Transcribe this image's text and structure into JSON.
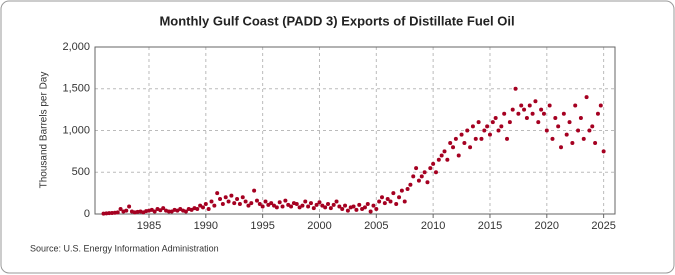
{
  "chart_data": {
    "type": "scatter",
    "title": "Monthly Gulf Coast (PADD 3) Exports of Distillate Fuel Oil",
    "y_label": "Thousand Barrels per Day",
    "source": "Source: U.S. Energy Information Administration",
    "color": "#a50021",
    "grid": true,
    "xlim": [
      1980.25,
      2026
    ],
    "xticks": [
      1985,
      1990,
      1995,
      2000,
      2005,
      2010,
      2015,
      2020,
      2025
    ],
    "ylim": [
      0,
      2000
    ],
    "yticks": [
      0,
      500,
      {
        "value": 1000,
        "label": "1,000"
      },
      {
        "value": 1500,
        "label": "1,500"
      },
      {
        "value": 2000,
        "label": "2,000"
      }
    ],
    "x": [
      1981,
      1981.25,
      1981.5,
      1981.75,
      1982,
      1982.25,
      1982.5,
      1982.75,
      1983,
      1983.25,
      1983.5,
      1983.75,
      1984,
      1984.25,
      1984.5,
      1984.75,
      1985,
      1985.25,
      1985.5,
      1985.75,
      1986,
      1986.25,
      1986.5,
      1986.75,
      1987,
      1987.25,
      1987.5,
      1987.75,
      1988,
      1988.25,
      1988.5,
      1988.75,
      1989,
      1989.25,
      1989.5,
      1989.75,
      1990,
      1990.25,
      1990.5,
      1990.75,
      1991,
      1991.25,
      1991.5,
      1991.75,
      1992,
      1992.25,
      1992.5,
      1992.75,
      1993,
      1993.25,
      1993.5,
      1993.75,
      1994,
      1994.25,
      1994.5,
      1994.75,
      1995,
      1995.25,
      1995.5,
      1995.75,
      1996,
      1996.25,
      1996.5,
      1996.75,
      1997,
      1997.25,
      1997.5,
      1997.75,
      1998,
      1998.25,
      1998.5,
      1998.75,
      1999,
      1999.25,
      1999.5,
      1999.75,
      2000,
      2000.25,
      2000.5,
      2000.75,
      2001,
      2001.25,
      2001.5,
      2001.75,
      2002,
      2002.25,
      2002.5,
      2002.75,
      2003,
      2003.25,
      2003.5,
      2003.75,
      2004,
      2004.25,
      2004.5,
      2004.75,
      2005,
      2005.25,
      2005.5,
      2005.75,
      2006,
      2006.25,
      2006.5,
      2006.75,
      2007,
      2007.25,
      2007.5,
      2007.75,
      2008,
      2008.25,
      2008.5,
      2008.75,
      2009,
      2009.25,
      2009.5,
      2009.75,
      2010,
      2010.25,
      2010.5,
      2010.75,
      2011,
      2011.25,
      2011.5,
      2011.75,
      2012,
      2012.25,
      2012.5,
      2012.75,
      2013,
      2013.25,
      2013.5,
      2013.75,
      2014,
      2014.25,
      2014.5,
      2014.75,
      2015,
      2015.25,
      2015.5,
      2015.75,
      2016,
      2016.25,
      2016.5,
      2016.75,
      2017,
      2017.25,
      2017.5,
      2017.75,
      2018,
      2018.25,
      2018.5,
      2018.75,
      2019,
      2019.25,
      2019.5,
      2019.75,
      2020,
      2020.25,
      2020.5,
      2020.75,
      2021,
      2021.25,
      2021.5,
      2021.75,
      2022,
      2022.25,
      2022.5,
      2022.75,
      2023,
      2023.25,
      2023.5,
      2023.75,
      2024,
      2024.25,
      2024.5,
      2024.75,
      2025
    ],
    "values": [
      5,
      8,
      10,
      12,
      15,
      20,
      60,
      30,
      40,
      90,
      30,
      20,
      25,
      30,
      20,
      35,
      40,
      50,
      30,
      60,
      45,
      70,
      40,
      30,
      30,
      50,
      40,
      60,
      40,
      30,
      60,
      50,
      70,
      60,
      100,
      80,
      120,
      60,
      150,
      100,
      250,
      180,
      120,
      200,
      150,
      220,
      130,
      180,
      120,
      200,
      150,
      100,
      130,
      280,
      160,
      120,
      90,
      150,
      110,
      130,
      100,
      80,
      140,
      90,
      160,
      110,
      90,
      130,
      120,
      80,
      100,
      150,
      90,
      130,
      70,
      110,
      140,
      100,
      80,
      120,
      70,
      110,
      150,
      90,
      60,
      100,
      40,
      80,
      90,
      50,
      110,
      60,
      80,
      120,
      30,
      100,
      60,
      150,
      200,
      130,
      180,
      150,
      250,
      120,
      200,
      280,
      150,
      300,
      350,
      450,
      550,
      400,
      450,
      500,
      380,
      550,
      600,
      500,
      650,
      700,
      750,
      650,
      850,
      800,
      900,
      700,
      950,
      850,
      1000,
      800,
      1050,
      900,
      1100,
      900,
      1000,
      1050,
      950,
      1100,
      1150,
      1000,
      1050,
      1200,
      900,
      1100,
      1250,
      1500,
      1200,
      1300,
      1250,
      1150,
      1300,
      1200,
      1350,
      1100,
      1250,
      1200,
      1000,
      1300,
      900,
      1150,
      1050,
      800,
      1200,
      950,
      1100,
      850,
      1300,
      1000,
      1150,
      900,
      1400,
      1000,
      1050,
      850,
      1200,
      1300,
      750
    ]
  }
}
